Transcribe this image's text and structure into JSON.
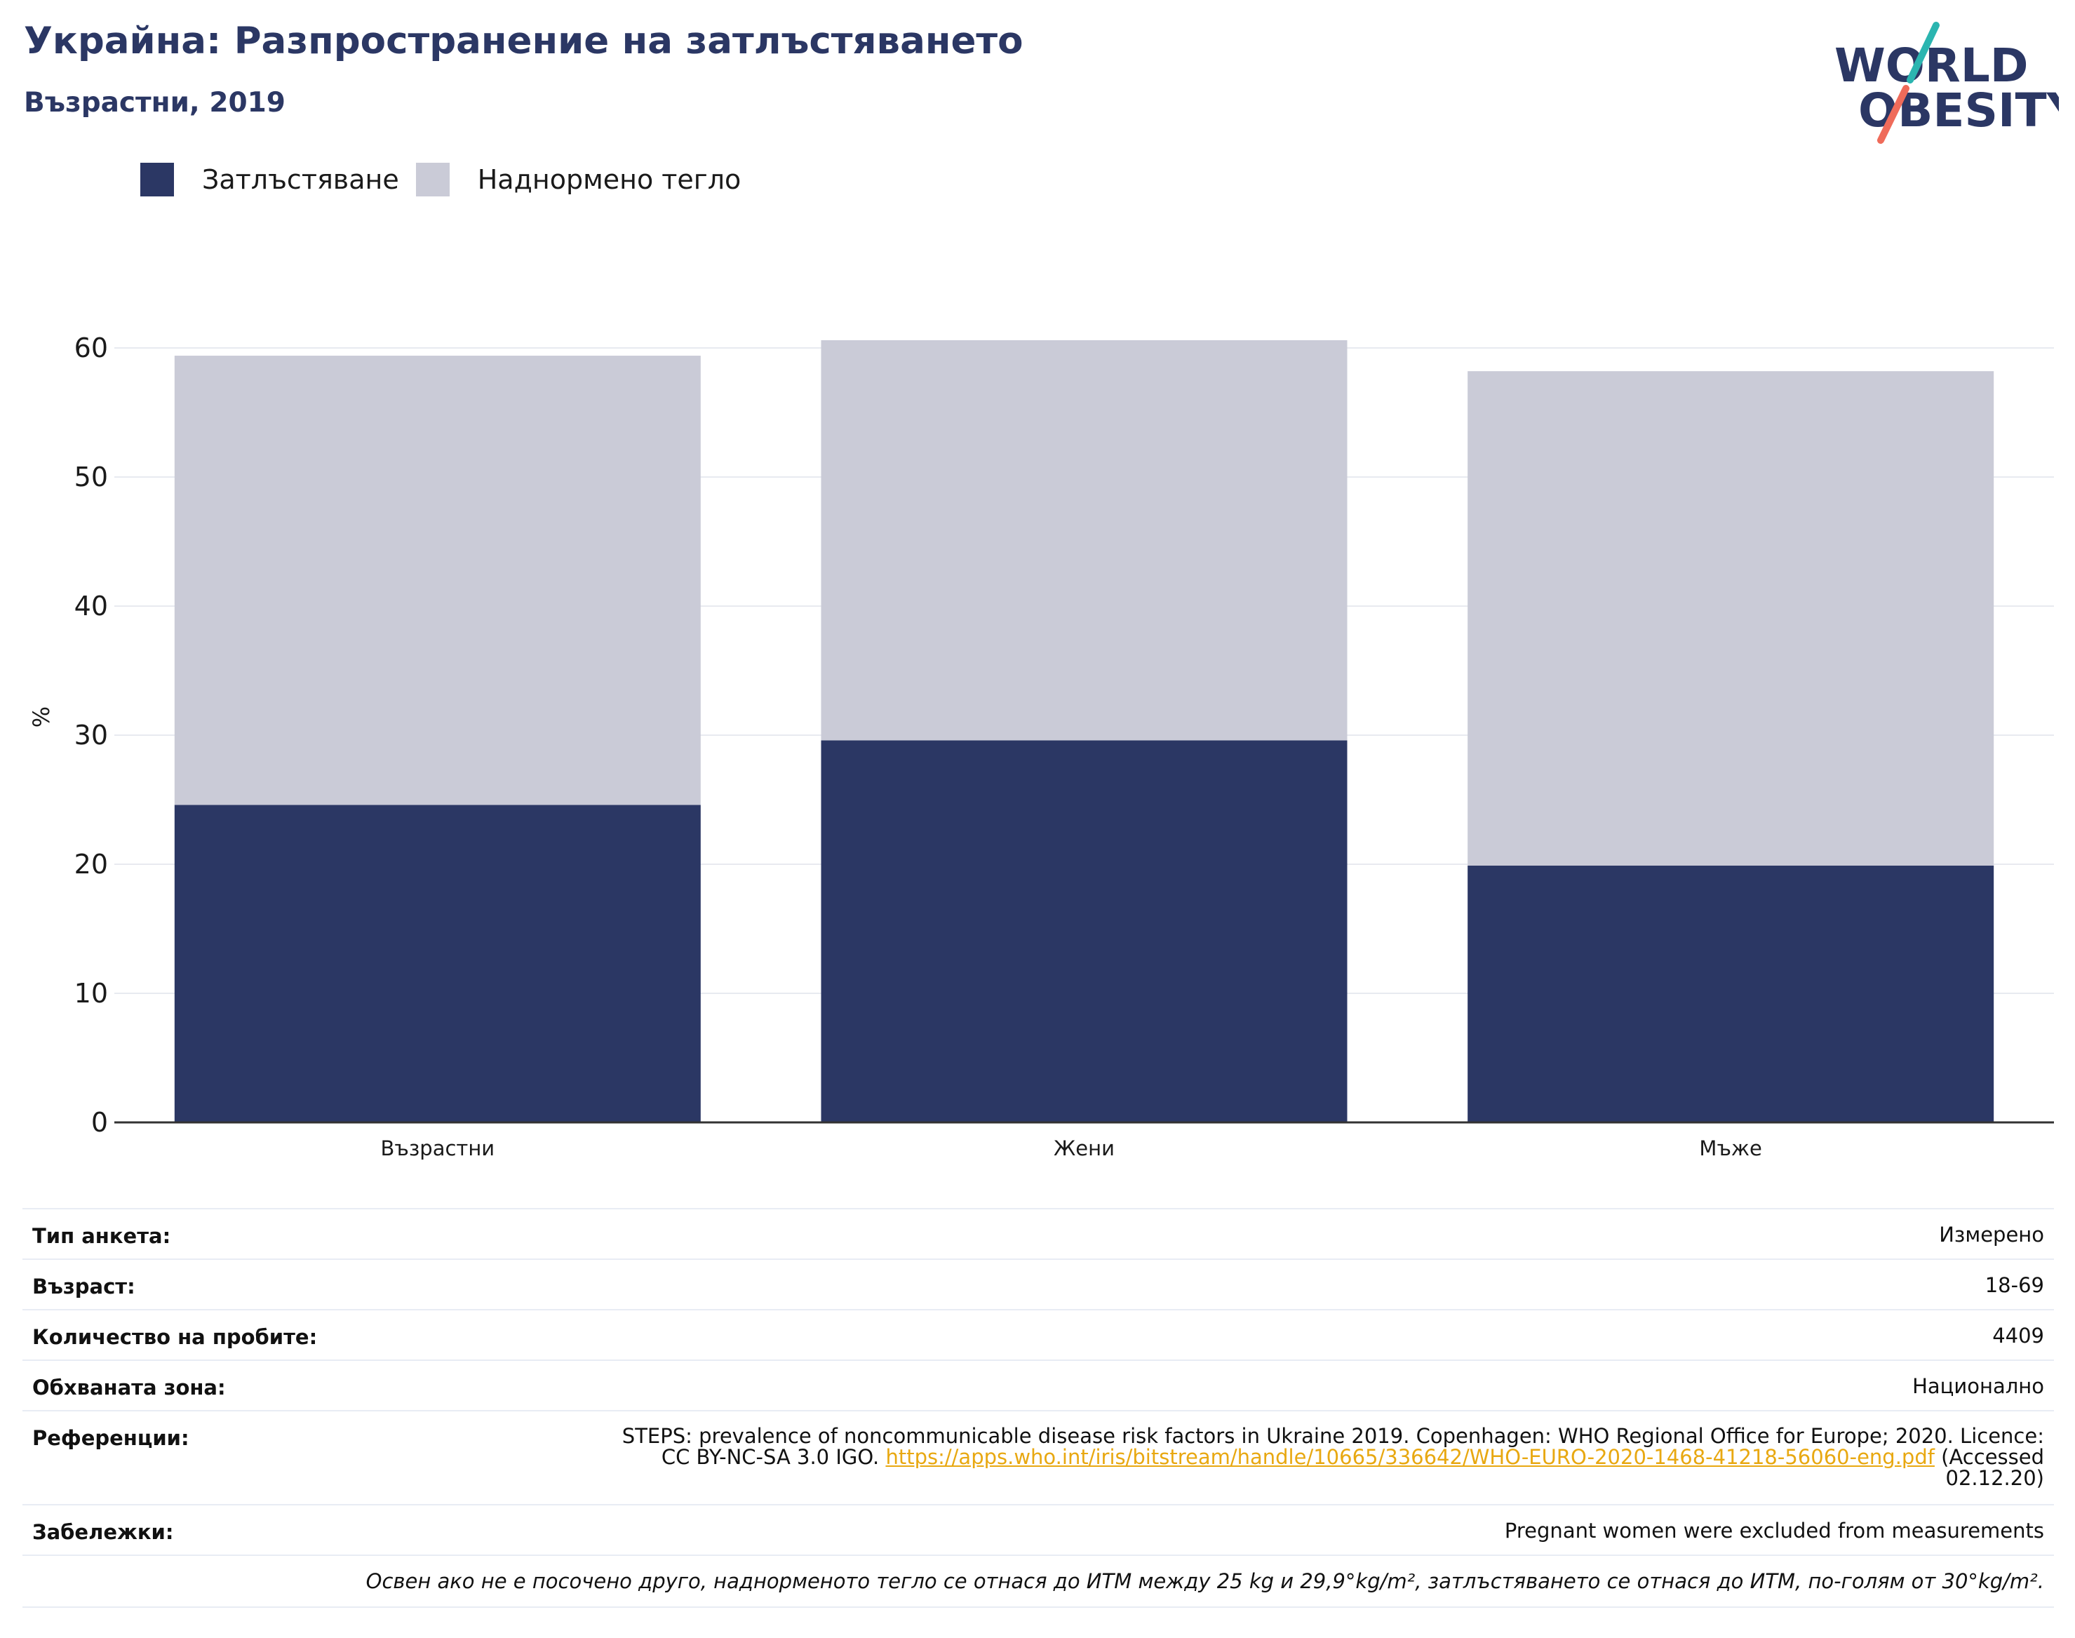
{
  "header": {
    "title": "Украйна: Разпространение на затлъстяването",
    "subtitle": "Възрастни, 2019"
  },
  "logo": {
    "line1": "WORLD",
    "line2": "OBESITY",
    "colors": {
      "text": "#2b3764",
      "slash_top": "#2bb5b0",
      "slash_bottom": "#ef6b5a"
    }
  },
  "chart_data": {
    "type": "bar",
    "stacked": true,
    "categories": [
      "Възрастни",
      "Жени",
      "Мъже"
    ],
    "series": [
      {
        "name": "Затлъстяване",
        "color": "#2b3764",
        "values": [
          24.6,
          29.6,
          19.9
        ]
      },
      {
        "name": "Наднормено тегло",
        "color": "#cacbd7",
        "values": [
          34.8,
          31.0,
          38.3
        ]
      }
    ],
    "ylabel": "%",
    "xlabel": "",
    "ylim": [
      0,
      60
    ],
    "yticks": [
      0,
      10,
      20,
      30,
      40,
      50,
      60
    ],
    "grid": true,
    "legend_position": "top-left"
  },
  "info": {
    "survey_type": {
      "label": "Тип анкета:",
      "value": "Измерено"
    },
    "age": {
      "label": "Възраст:",
      "value": "18-69"
    },
    "sample_size": {
      "label": "Количество на пробите:",
      "value": "4409"
    },
    "area": {
      "label": "Обхваната зона:",
      "value": "Национално"
    },
    "references": {
      "label": "Референции:",
      "text_line1": "STEPS: prevalence of noncommunicable disease risk factors in Ukraine 2019. Copenhagen: WHO Regional Office for Europe; 2020. Licence:",
      "text_line2_prefix": "CC BY-NC-SA 3.0 IGO.",
      "link": "https://apps.who.int/iris/bitstream/handle/10665/336642/WHO-EURO-2020-1468-41218-56060-eng.pdf",
      "text_line2_suffix": "(Accessed",
      "text_line3": "02.12.20)"
    },
    "notes": {
      "label": "Забележки:",
      "value": "Pregnant women were excluded from measurements"
    },
    "footnote": "Освен ако не е посочено друго, наднорменото тегло се отнася до ИТМ между 25 kg и 29,9°kg/m², затлъстяването се отнася до ИТМ, по-голям от 30°kg/m²."
  }
}
